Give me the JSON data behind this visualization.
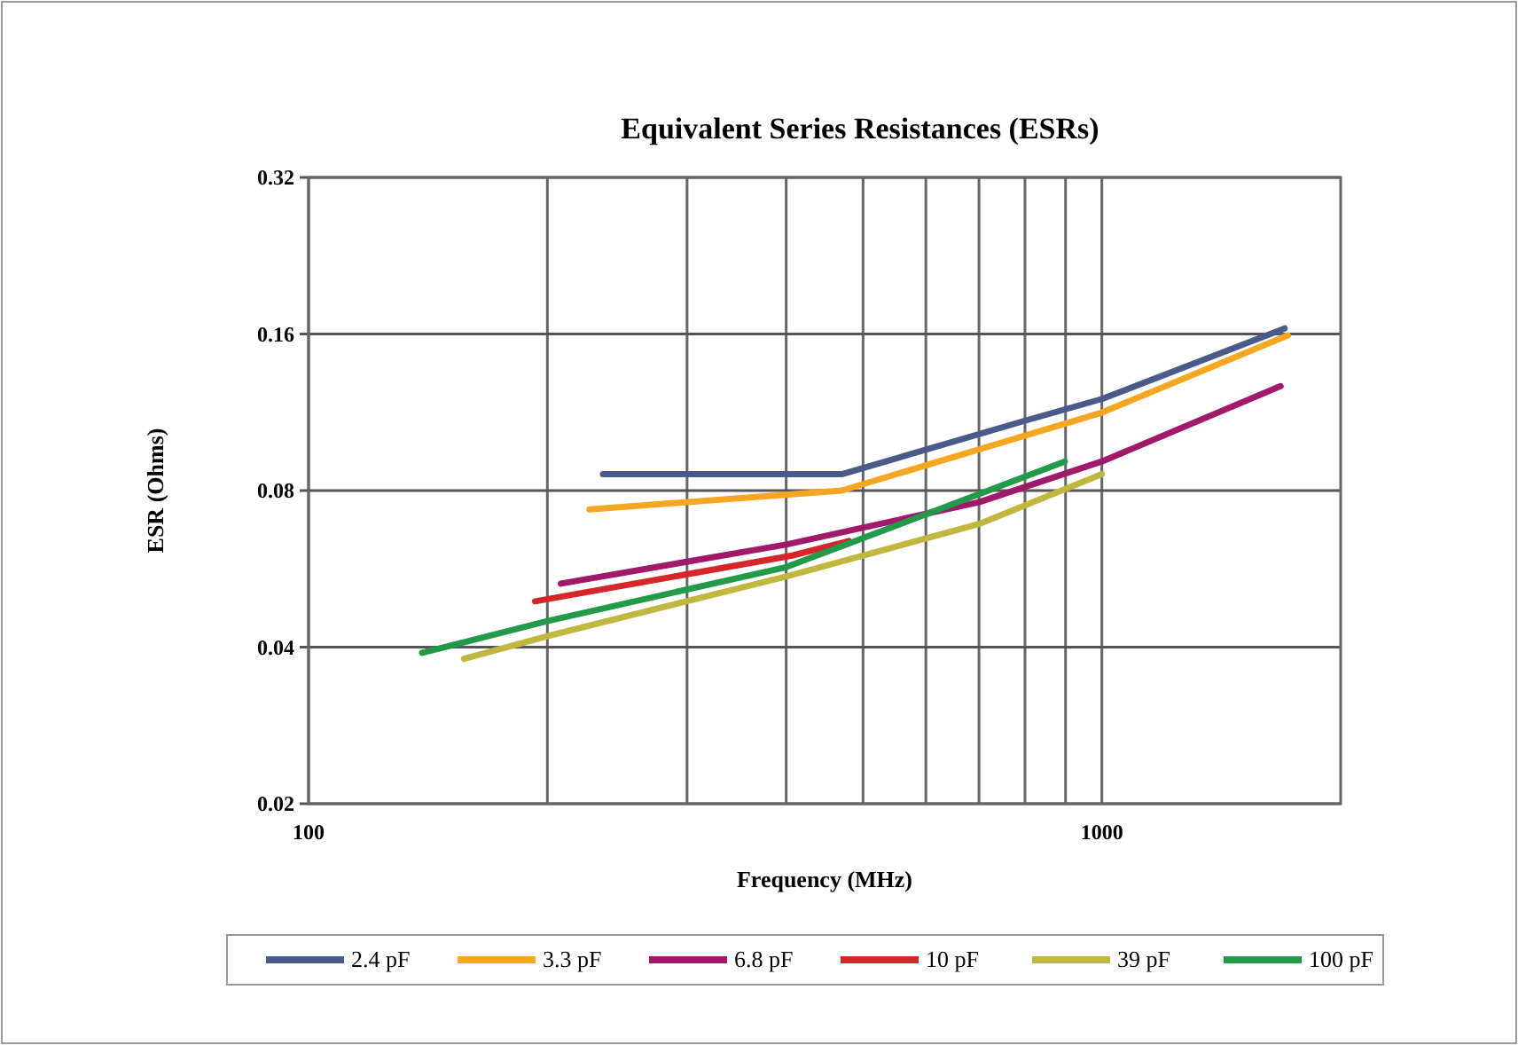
{
  "chart_data": {
    "type": "line",
    "title": "Equivalent Series Resistances (ESRs)",
    "xlabel": "Frequency (MHz)",
    "ylabel": "ESR (Ohms)",
    "log": "xy",
    "grid": true,
    "legend": "bottom",
    "line_style": "solid",
    "marker": "none",
    "xlim": [
      100,
      2000
    ],
    "xticks": [
      100,
      {
        "value": 200,
        "label": null
      },
      {
        "value": 300,
        "label": null
      },
      {
        "value": 400,
        "label": null
      },
      {
        "value": 500,
        "label": null
      },
      {
        "value": 600,
        "label": null
      },
      {
        "value": 700,
        "label": null
      },
      {
        "value": 800,
        "label": null
      },
      {
        "value": 900,
        "label": null
      },
      1000
    ],
    "ylim": [
      0.02,
      0.32
    ],
    "yticks": [
      0.02,
      0.04,
      0.08,
      0.16,
      0.32
    ],
    "series": [
      {
        "name": "2.4 pF",
        "color": "#4a5a8a",
        "x": [
          235,
          470,
          800,
          1000,
          1700
        ],
        "values": [
          0.086,
          0.086,
          0.109,
          0.12,
          0.164
        ]
      },
      {
        "name": "3.3 pF",
        "color": "#f5a623",
        "x": [
          226,
          470,
          1000,
          1716
        ],
        "values": [
          0.0736,
          0.08,
          0.113,
          0.159
        ]
      },
      {
        "name": "6.8 pF",
        "color": "#a0196b",
        "x": [
          208,
          400,
          700,
          1000,
          1680
        ],
        "values": [
          0.053,
          0.063,
          0.076,
          0.091,
          0.127
        ]
      },
      {
        "name": "10 pF",
        "color": "#d7262b",
        "x": [
          193,
          407,
          480
        ],
        "values": [
          0.049,
          0.06,
          0.064
        ]
      },
      {
        "name": "39 pF",
        "color": "#c0b640",
        "x": [
          157,
          200,
          400,
          700,
          1000
        ],
        "values": [
          0.038,
          0.042,
          0.0547,
          0.069,
          0.086
        ]
      },
      {
        "name": "100 pF",
        "color": "#23994a",
        "x": [
          139,
          200,
          400,
          600,
          898
        ],
        "values": [
          0.039,
          0.0449,
          0.057,
          0.072,
          0.091
        ]
      }
    ]
  }
}
